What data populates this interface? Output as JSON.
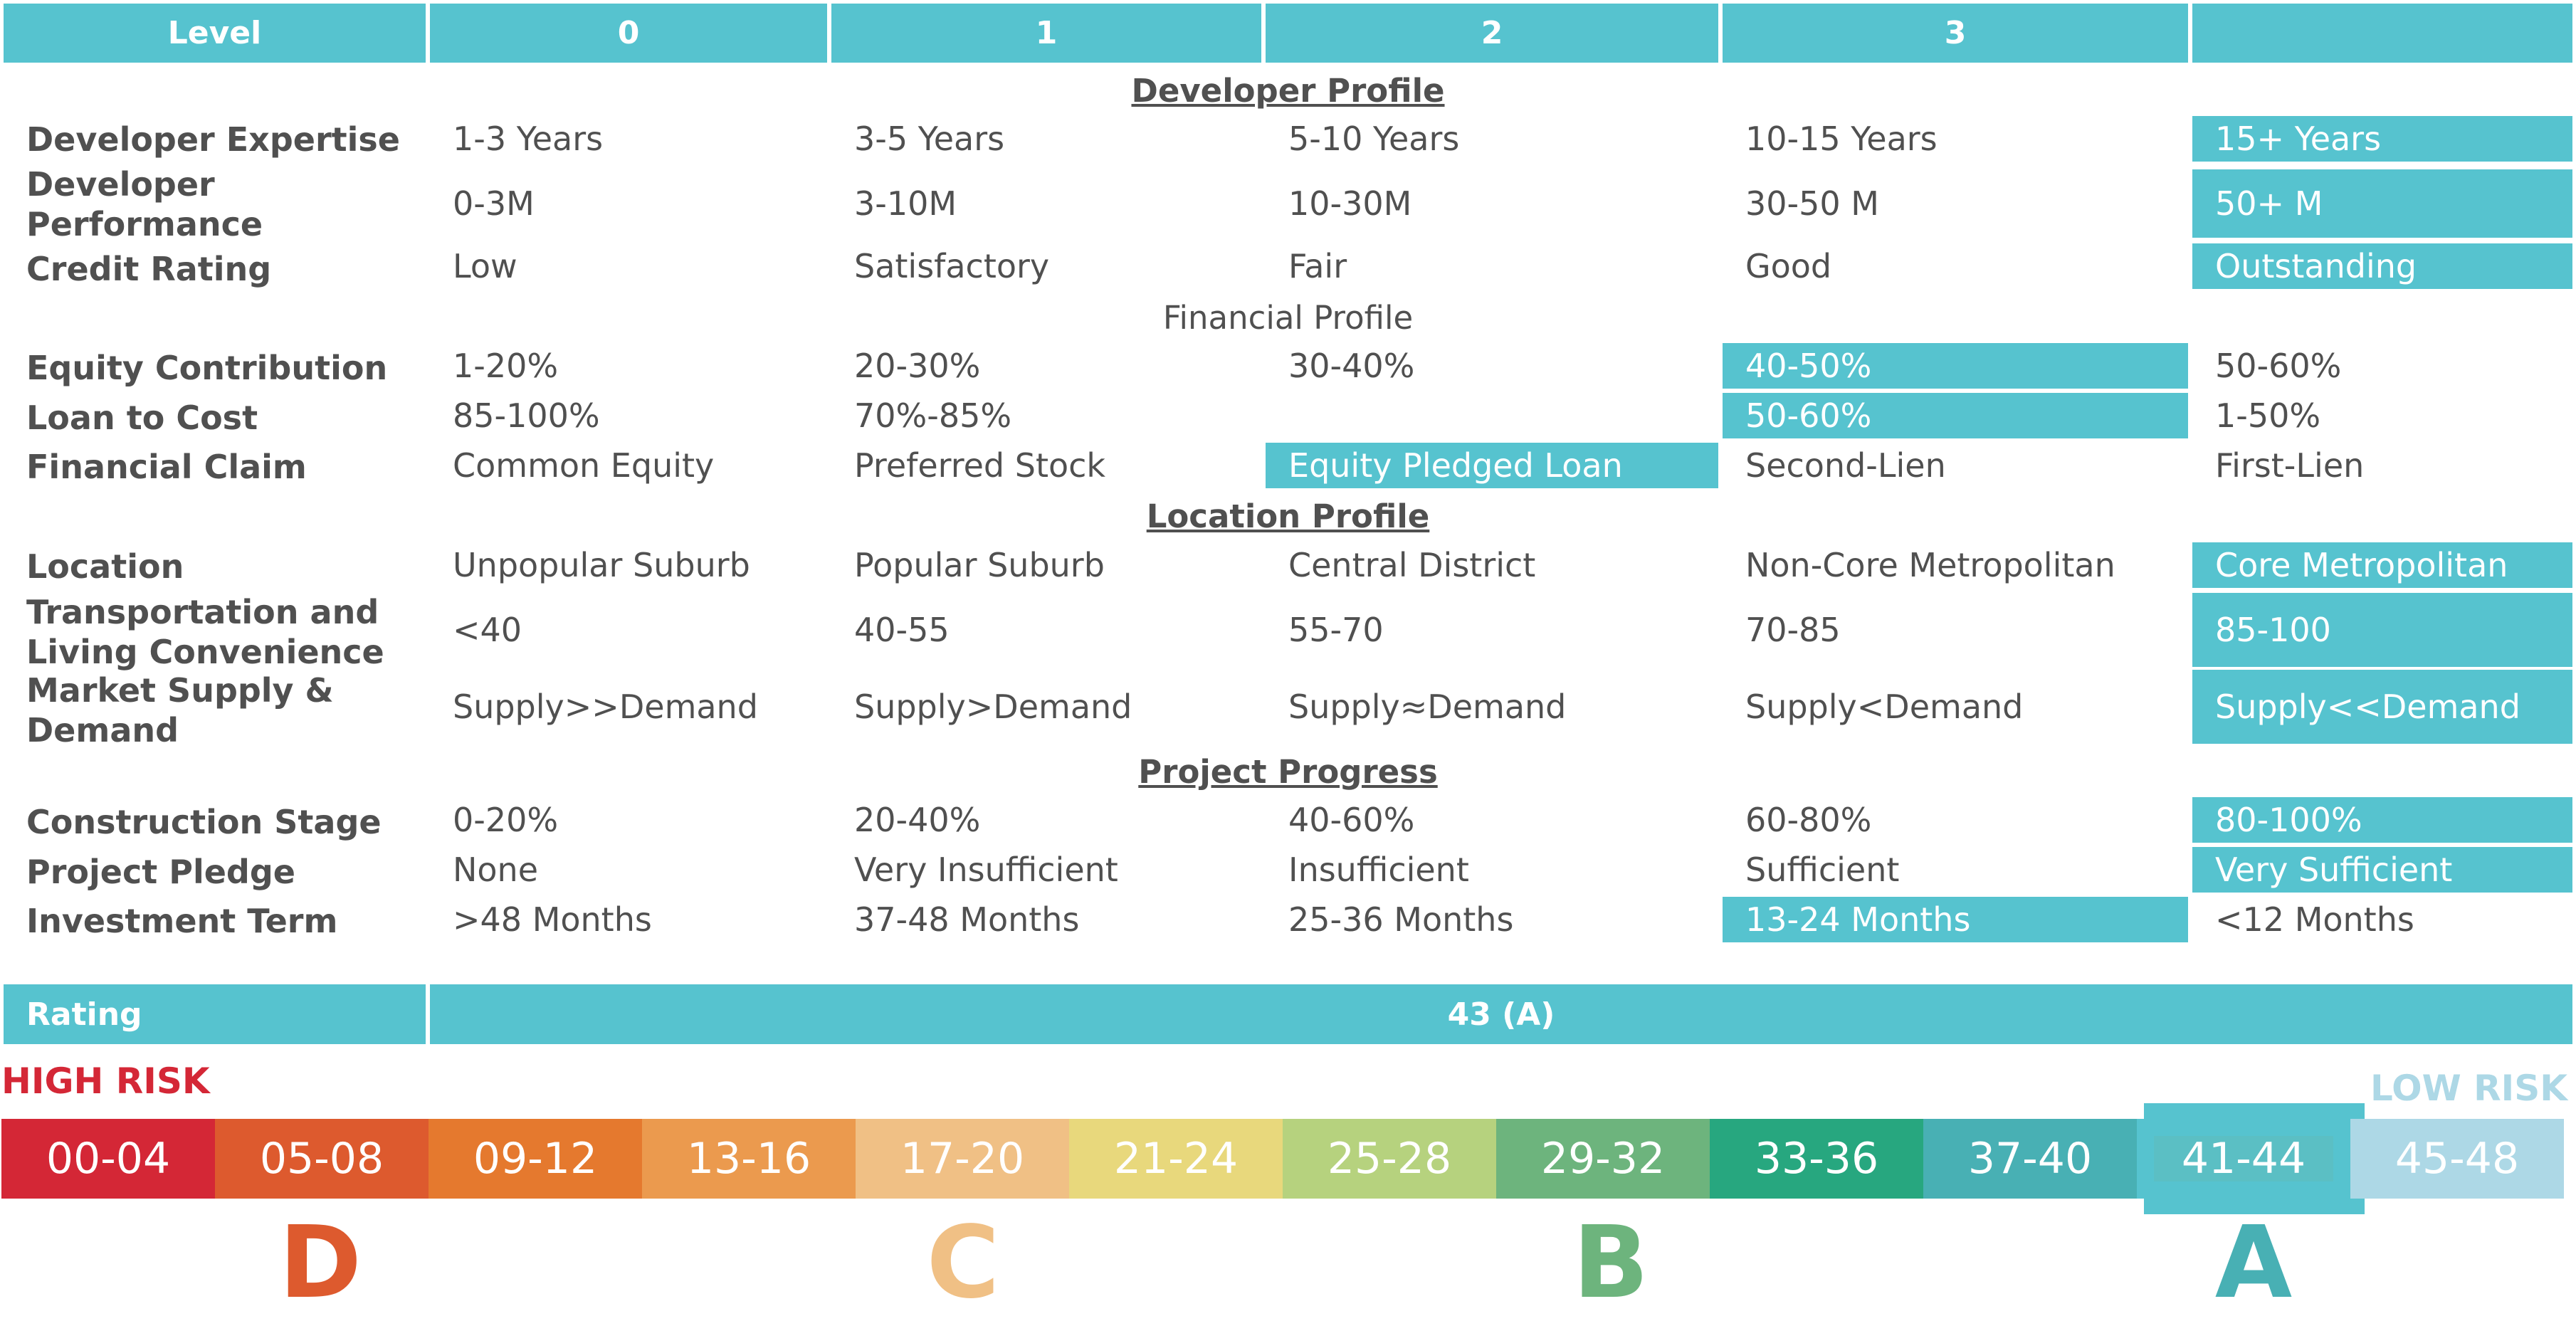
{
  "header": {
    "level_label": "Level",
    "levels": [
      "0",
      "1",
      "2",
      "3",
      ""
    ]
  },
  "sections": {
    "developer": "Developer Profile",
    "financial": "Financial Profile",
    "location": "Location Profile",
    "progress": "Project Progress"
  },
  "rows": {
    "developer_expertise": {
      "label": "Developer Expertise",
      "values": [
        "1-3 Years",
        "3-5 Years",
        "5-10 Years",
        "10-15 Years",
        "15+  Years"
      ],
      "selected": 4
    },
    "developer_performance": {
      "label": "Developer Performance",
      "values": [
        "0-3M",
        "3-10M",
        "10-30M",
        "30-50 M",
        "50+ M"
      ],
      "selected": 4
    },
    "credit_rating": {
      "label": "Credit Rating",
      "values": [
        "Low",
        "Satisfactory",
        "Fair",
        "Good",
        "Outstanding"
      ],
      "selected": 4
    },
    "equity_contribution": {
      "label": "Equity Contribution",
      "values": [
        "1-20%",
        "20-30%",
        "30-40%",
        "40-50%",
        "50-60%"
      ],
      "selected": 3
    },
    "loan_to_cost": {
      "label": "Loan to Cost",
      "values": [
        "85-100%",
        "70%-85%",
        "",
        "50-60%",
        "1-50%"
      ],
      "selected": 3
    },
    "financial_claim": {
      "label": "Financial Claim",
      "values": [
        "Common Equity",
        "Preferred Stock",
        "Equity Pledged Loan",
        "Second-Lien",
        "First-Lien"
      ],
      "selected": 2
    },
    "location": {
      "label": "Location",
      "values": [
        "Unpopular Suburb",
        "Popular Suburb",
        "Central District",
        "Non-Core Metropolitan",
        "Core Metropolitan"
      ],
      "selected": 4
    },
    "transportation": {
      "label": "Transportation and Living Convenience",
      "values": [
        "<40",
        "40-55",
        "55-70",
        "70-85",
        "85-100"
      ],
      "selected": 4
    },
    "market_supply": {
      "label": "Market Supply & Demand",
      "values": [
        "Supply>>Demand",
        "Supply>Demand",
        "Supply≈Demand",
        "Supply<Demand",
        "Supply<<Demand"
      ],
      "selected": 4
    },
    "construction_stage": {
      "label": "Construction Stage",
      "values": [
        "0-20%",
        "20-40%",
        "40-60%",
        "60-80%",
        "80-100%"
      ],
      "selected": 4
    },
    "project_pledge": {
      "label": "Project Pledge",
      "values": [
        "None",
        "Very Insufficient",
        "Insufficient",
        "Sufficient",
        "Very Sufficient"
      ],
      "selected": 4
    },
    "investment_term": {
      "label": "Investment Term",
      "values": [
        ">48 Months",
        "37-48 Months",
        "25-36 Months",
        "13-24 Months",
        "<12 Months"
      ],
      "selected": 3
    }
  },
  "rating": {
    "label": "Rating",
    "value": "43 (A)"
  },
  "scale": {
    "high_risk": "HIGH RISK",
    "low_risk": "LOW RISK",
    "segments": [
      "00-04",
      "05-08",
      "09-12",
      "13-16",
      "17-20",
      "21-24",
      "25-28",
      "29-32",
      "33-36",
      "37-40",
      "41-44",
      "45-48"
    ],
    "colors": [
      "#d42736",
      "#dd5a2e",
      "#e5792e",
      "#eb9a4e",
      "#f0c085",
      "#e8d87c",
      "#b6d27e",
      "#6db47d",
      "#27a77f",
      "#48b0b4",
      "#5bbfc4",
      "#add8e6"
    ],
    "selected_index": 10,
    "grades": [
      "D",
      "C",
      "B",
      "A"
    ],
    "grade_colors": [
      "#dd5a2e",
      "#f0c085",
      "#6db47d",
      "#48b0b4"
    ],
    "high_risk_color": "#d42736",
    "low_risk_color": "#add8e6",
    "accent": "#56c3cf"
  }
}
